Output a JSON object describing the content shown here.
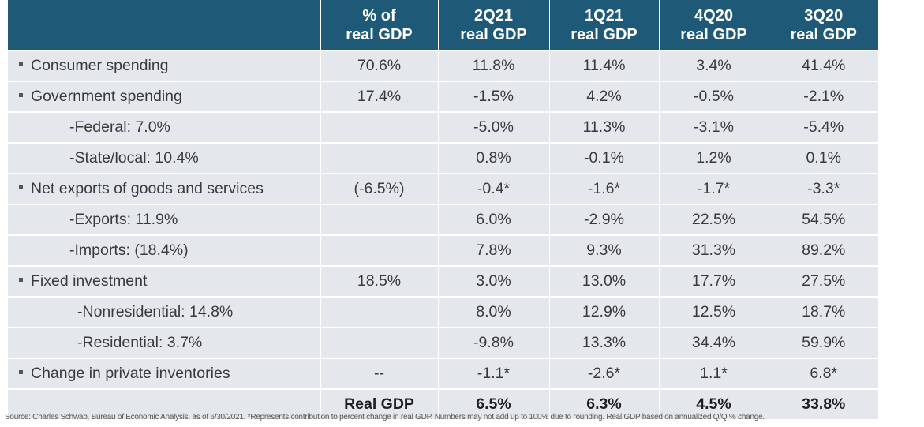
{
  "headers": [
    "",
    "% of\nreal GDP",
    "2Q21\nreal GDP",
    "1Q21\nreal GDP",
    "4Q20\nreal GDP",
    "3Q20\nreal GDP"
  ],
  "header_lines": [
    [
      "",
      ""
    ],
    [
      "% of",
      "real GDP"
    ],
    [
      "2Q21",
      "real GDP"
    ],
    [
      "1Q21",
      "real GDP"
    ],
    [
      "4Q20",
      "real GDP"
    ],
    [
      "3Q20",
      "real GDP"
    ]
  ],
  "rows": [
    {
      "label": "Consumer spending",
      "bullet": true,
      "level": 0,
      "share": "70.6%",
      "values": [
        "11.8%",
        "11.4%",
        "3.4%",
        "41.4%"
      ]
    },
    {
      "label": "Government spending",
      "bullet": true,
      "level": 0,
      "share": "17.4%",
      "values": [
        "-1.5%",
        "4.2%",
        "-0.5%",
        "-2.1%"
      ]
    },
    {
      "label": "-Federal: 7.0%",
      "bullet": false,
      "level": 1,
      "share": "",
      "values": [
        "-5.0%",
        "11.3%",
        "-3.1%",
        "-5.4%"
      ]
    },
    {
      "label": "-State/local: 10.4%",
      "bullet": false,
      "level": 1,
      "share": "",
      "values": [
        "0.8%",
        "-0.1%",
        "1.2%",
        "0.1%"
      ]
    },
    {
      "label": "Net exports of goods and services",
      "bullet": true,
      "level": 0,
      "share": "(-6.5%)",
      "values": [
        "-0.4*",
        "-1.6*",
        "-1.7*",
        "-3.3*"
      ]
    },
    {
      "label": "-Exports: 11.9%",
      "bullet": false,
      "level": 1,
      "share": "",
      "values": [
        "6.0%",
        "-2.9%",
        "22.5%",
        "54.5%"
      ]
    },
    {
      "label": "-Imports: (18.4%)",
      "bullet": false,
      "level": 1,
      "share": "",
      "values": [
        "7.8%",
        "9.3%",
        "31.3%",
        "89.2%"
      ]
    },
    {
      "label": "Fixed investment",
      "bullet": true,
      "level": 0,
      "share": "18.5%",
      "values": [
        "3.0%",
        "13.0%",
        "17.7%",
        "27.5%"
      ]
    },
    {
      "label": "-Nonresidential: 14.8%",
      "bullet": false,
      "level": 2,
      "share": "",
      "values": [
        "8.0%",
        "12.9%",
        "12.5%",
        "18.7%"
      ]
    },
    {
      "label": "-Residential: 3.7%",
      "bullet": false,
      "level": 2,
      "share": "",
      "values": [
        "-9.8%",
        "13.3%",
        "34.4%",
        "59.9%"
      ]
    },
    {
      "label": "Change in private inventories",
      "bullet": true,
      "level": 0,
      "share": "--",
      "values": [
        "-1.1*",
        "-2.6*",
        "1.1*",
        "6.8*"
      ]
    }
  ],
  "total": {
    "label": "Real GDP",
    "values": [
      "6.5%",
      "6.3%",
      "4.5%",
      "33.8%"
    ]
  },
  "source": "Source: Charles Schwab, Bureau of Economic Analysis, as of 6/30/2021. *Represents contribution to percent change in real GDP. Numbers may not add up to 100% due to rounding. Real GDP based on annualized Q/Q % change.",
  "colors": {
    "header_bg": "#1e5a78",
    "row_bg": "#e4e8ec",
    "header_text": "#ffffff"
  }
}
